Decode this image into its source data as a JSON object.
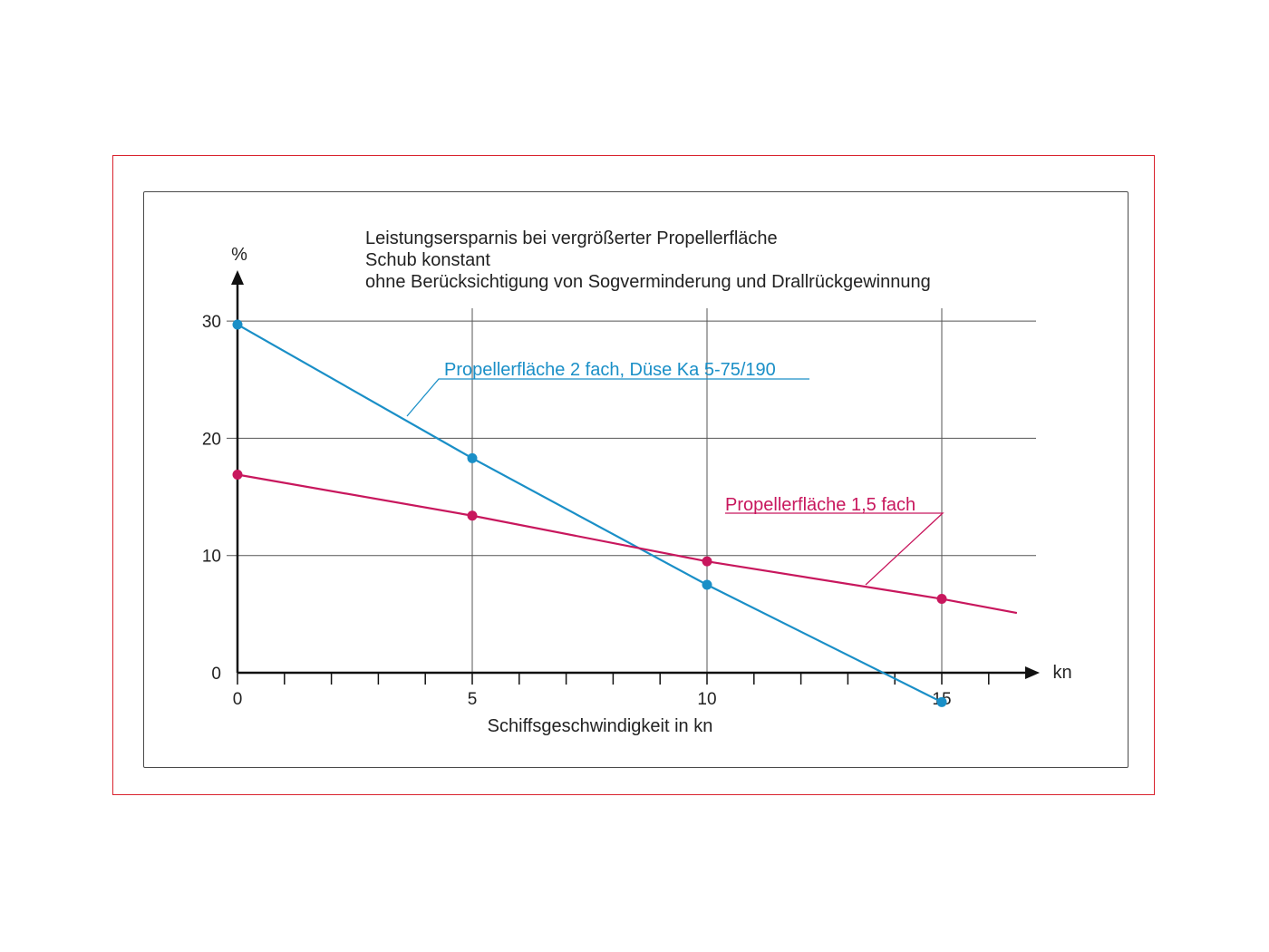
{
  "chart_data": {
    "type": "line",
    "title_lines": [
      "Leistungsersparnis bei vergrößerter Propellerfläche",
      "Schub konstant",
      "ohne Berücksichtigung von Sogverminderung und Drallrückgewinnung"
    ],
    "xlabel": "Schiffsgeschwindigkeit in kn",
    "x_unit": "kn",
    "y_unit": "%",
    "xlim": [
      0,
      17
    ],
    "ylim": [
      0,
      30
    ],
    "x_ticks": [
      0,
      5,
      10,
      15
    ],
    "y_ticks": [
      0,
      10,
      20,
      30
    ],
    "grid": true,
    "series": [
      {
        "name": "Propellerfläche 2 fach, Düse Ka 5-75/190",
        "color": "#1a8fc7",
        "x": [
          0,
          5,
          10,
          15
        ],
        "y": [
          29.7,
          18.3,
          7.5,
          -2.5
        ]
      },
      {
        "name": "Propellerfläche 1,5 fach",
        "color": "#c8175d",
        "x": [
          0,
          5,
          10,
          15
        ],
        "y": [
          16.9,
          13.4,
          9.5,
          6.3
        ],
        "line_extends_to_x": 16.6,
        "line_extends_to_y": 5.1
      }
    ]
  }
}
